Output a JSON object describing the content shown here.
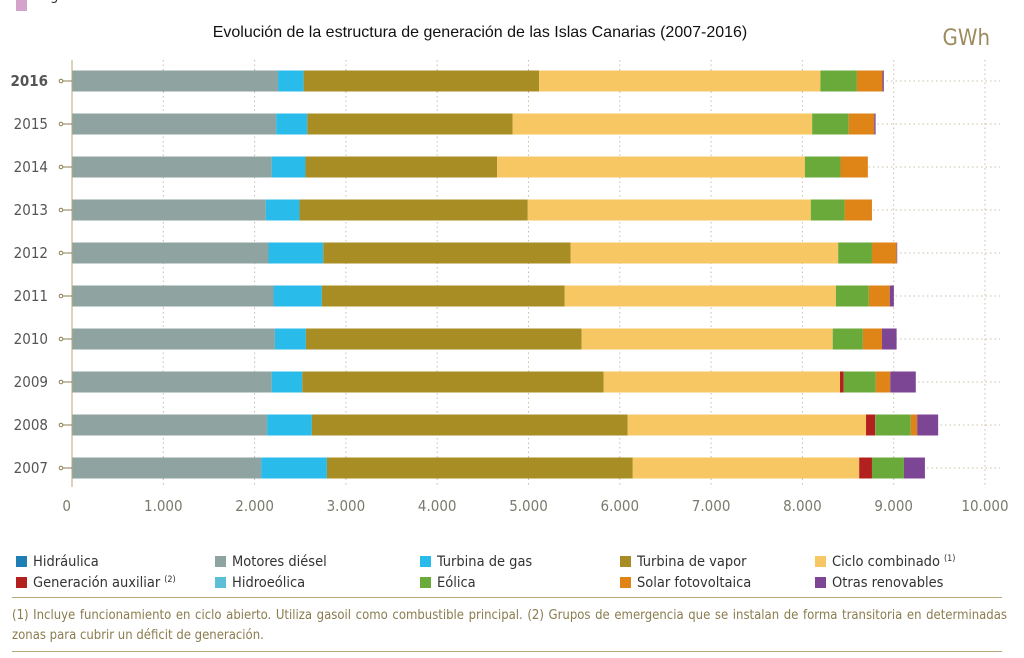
{
  "chart_data": {
    "type": "bar",
    "orientation": "horizontal",
    "stacked": true,
    "title": "Evolución de la estructura de generación de las Islas Canarias (2007-2016)",
    "unit": "GWh",
    "categories": [
      "2016",
      "2015",
      "2014",
      "2013",
      "2012",
      "2011",
      "2010",
      "2009",
      "2008",
      "2007"
    ],
    "xlim": [
      0,
      10000
    ],
    "xticks": [
      0,
      1000,
      2000,
      3000,
      4000,
      5000,
      6000,
      7000,
      8000,
      9000,
      10000
    ],
    "xtick_labels": [
      "0",
      "1.000",
      "2.000",
      "3.000",
      "4.000",
      "5.000",
      "6.000",
      "7.000",
      "8.000",
      "9.000",
      "10.000"
    ],
    "grid": "vertical-dotted",
    "legend_position": "bottom",
    "series": [
      {
        "name": "Hidráulica",
        "color": "#1f7fb4",
        "values": [
          2,
          2,
          2,
          2,
          2,
          2,
          2,
          2,
          2,
          2
        ]
      },
      {
        "name": "Motores diésel",
        "color": "#8fa3a0",
        "values": [
          2255,
          2235,
          2185,
          2120,
          2150,
          2205,
          2220,
          2185,
          2135,
          2070
        ]
      },
      {
        "name": "Turbina de gas",
        "color": "#29bbe9",
        "values": [
          280,
          340,
          370,
          370,
          600,
          530,
          340,
          335,
          490,
          720
        ]
      },
      {
        "name": "Turbina de vapor",
        "color": "#a88c24",
        "values": [
          2580,
          2250,
          2100,
          2500,
          2710,
          2660,
          3020,
          3300,
          3460,
          3350
        ]
      },
      {
        "name": "Ciclo combinado",
        "color": "#f7c763",
        "values": [
          3080,
          3280,
          3370,
          3100,
          2930,
          2970,
          2750,
          2590,
          2610,
          2480
        ]
      },
      {
        "name": "Generación auxiliar",
        "color": "#b3211f",
        "values": [
          0,
          0,
          0,
          0,
          0,
          0,
          0,
          40,
          100,
          140
        ]
      },
      {
        "name": "Hidroeólica",
        "color": "#5bbfd6",
        "values": [
          0,
          0,
          0,
          0,
          0,
          0,
          0,
          0,
          0,
          0
        ]
      },
      {
        "name": "Eólica",
        "color": "#6aaa3a",
        "values": [
          400,
          400,
          390,
          370,
          370,
          360,
          330,
          350,
          390,
          350
        ]
      },
      {
        "name": "Solar fotovoltaica",
        "color": "#df8417",
        "values": [
          280,
          280,
          300,
          300,
          270,
          230,
          210,
          160,
          70,
          0
        ]
      },
      {
        "name": "Otras renovables",
        "color": "#7d4694",
        "values": [
          15,
          15,
          0,
          0,
          5,
          45,
          160,
          280,
          230,
          230
        ]
      },
      {
        "name": "Cogeneración",
        "color": "#d3a3cc",
        "values": [
          0,
          0,
          0,
          0,
          0,
          0,
          0,
          0,
          0,
          0
        ]
      }
    ]
  },
  "legend": [
    {
      "label": "Hidráulica",
      "sup": "",
      "color": "#1f7fb4"
    },
    {
      "label": "Motores diésel",
      "sup": "",
      "color": "#8fa3a0"
    },
    {
      "label": "Turbina de gas",
      "sup": "",
      "color": "#29bbe9"
    },
    {
      "label": "Turbina de vapor",
      "sup": "",
      "color": "#a88c24"
    },
    {
      "label": "Ciclo combinado",
      "sup": "(1)",
      "color": "#f7c763"
    },
    {
      "label": "Generación auxiliar",
      "sup": "(2)",
      "color": "#b3211f"
    },
    {
      "label": "Hidroeólica",
      "sup": "",
      "color": "#5bbfd6"
    },
    {
      "label": "Eólica",
      "sup": "",
      "color": "#6aaa3a"
    },
    {
      "label": "Solar fotovoltaica",
      "sup": "",
      "color": "#df8417"
    },
    {
      "label": "Otras renovables",
      "sup": "",
      "color": "#7d4694"
    },
    {
      "label": "Cogeneración",
      "sup": "",
      "color": "#d3a3cc"
    }
  ],
  "footnote": "(1) Incluye funcionamiento en ciclo abierto. Utiliza gasoil como combustible principal. (2) Grupos de emergencia que se instalan de forma transitoria en determinadas zonas para cubrir un déficit de generación."
}
